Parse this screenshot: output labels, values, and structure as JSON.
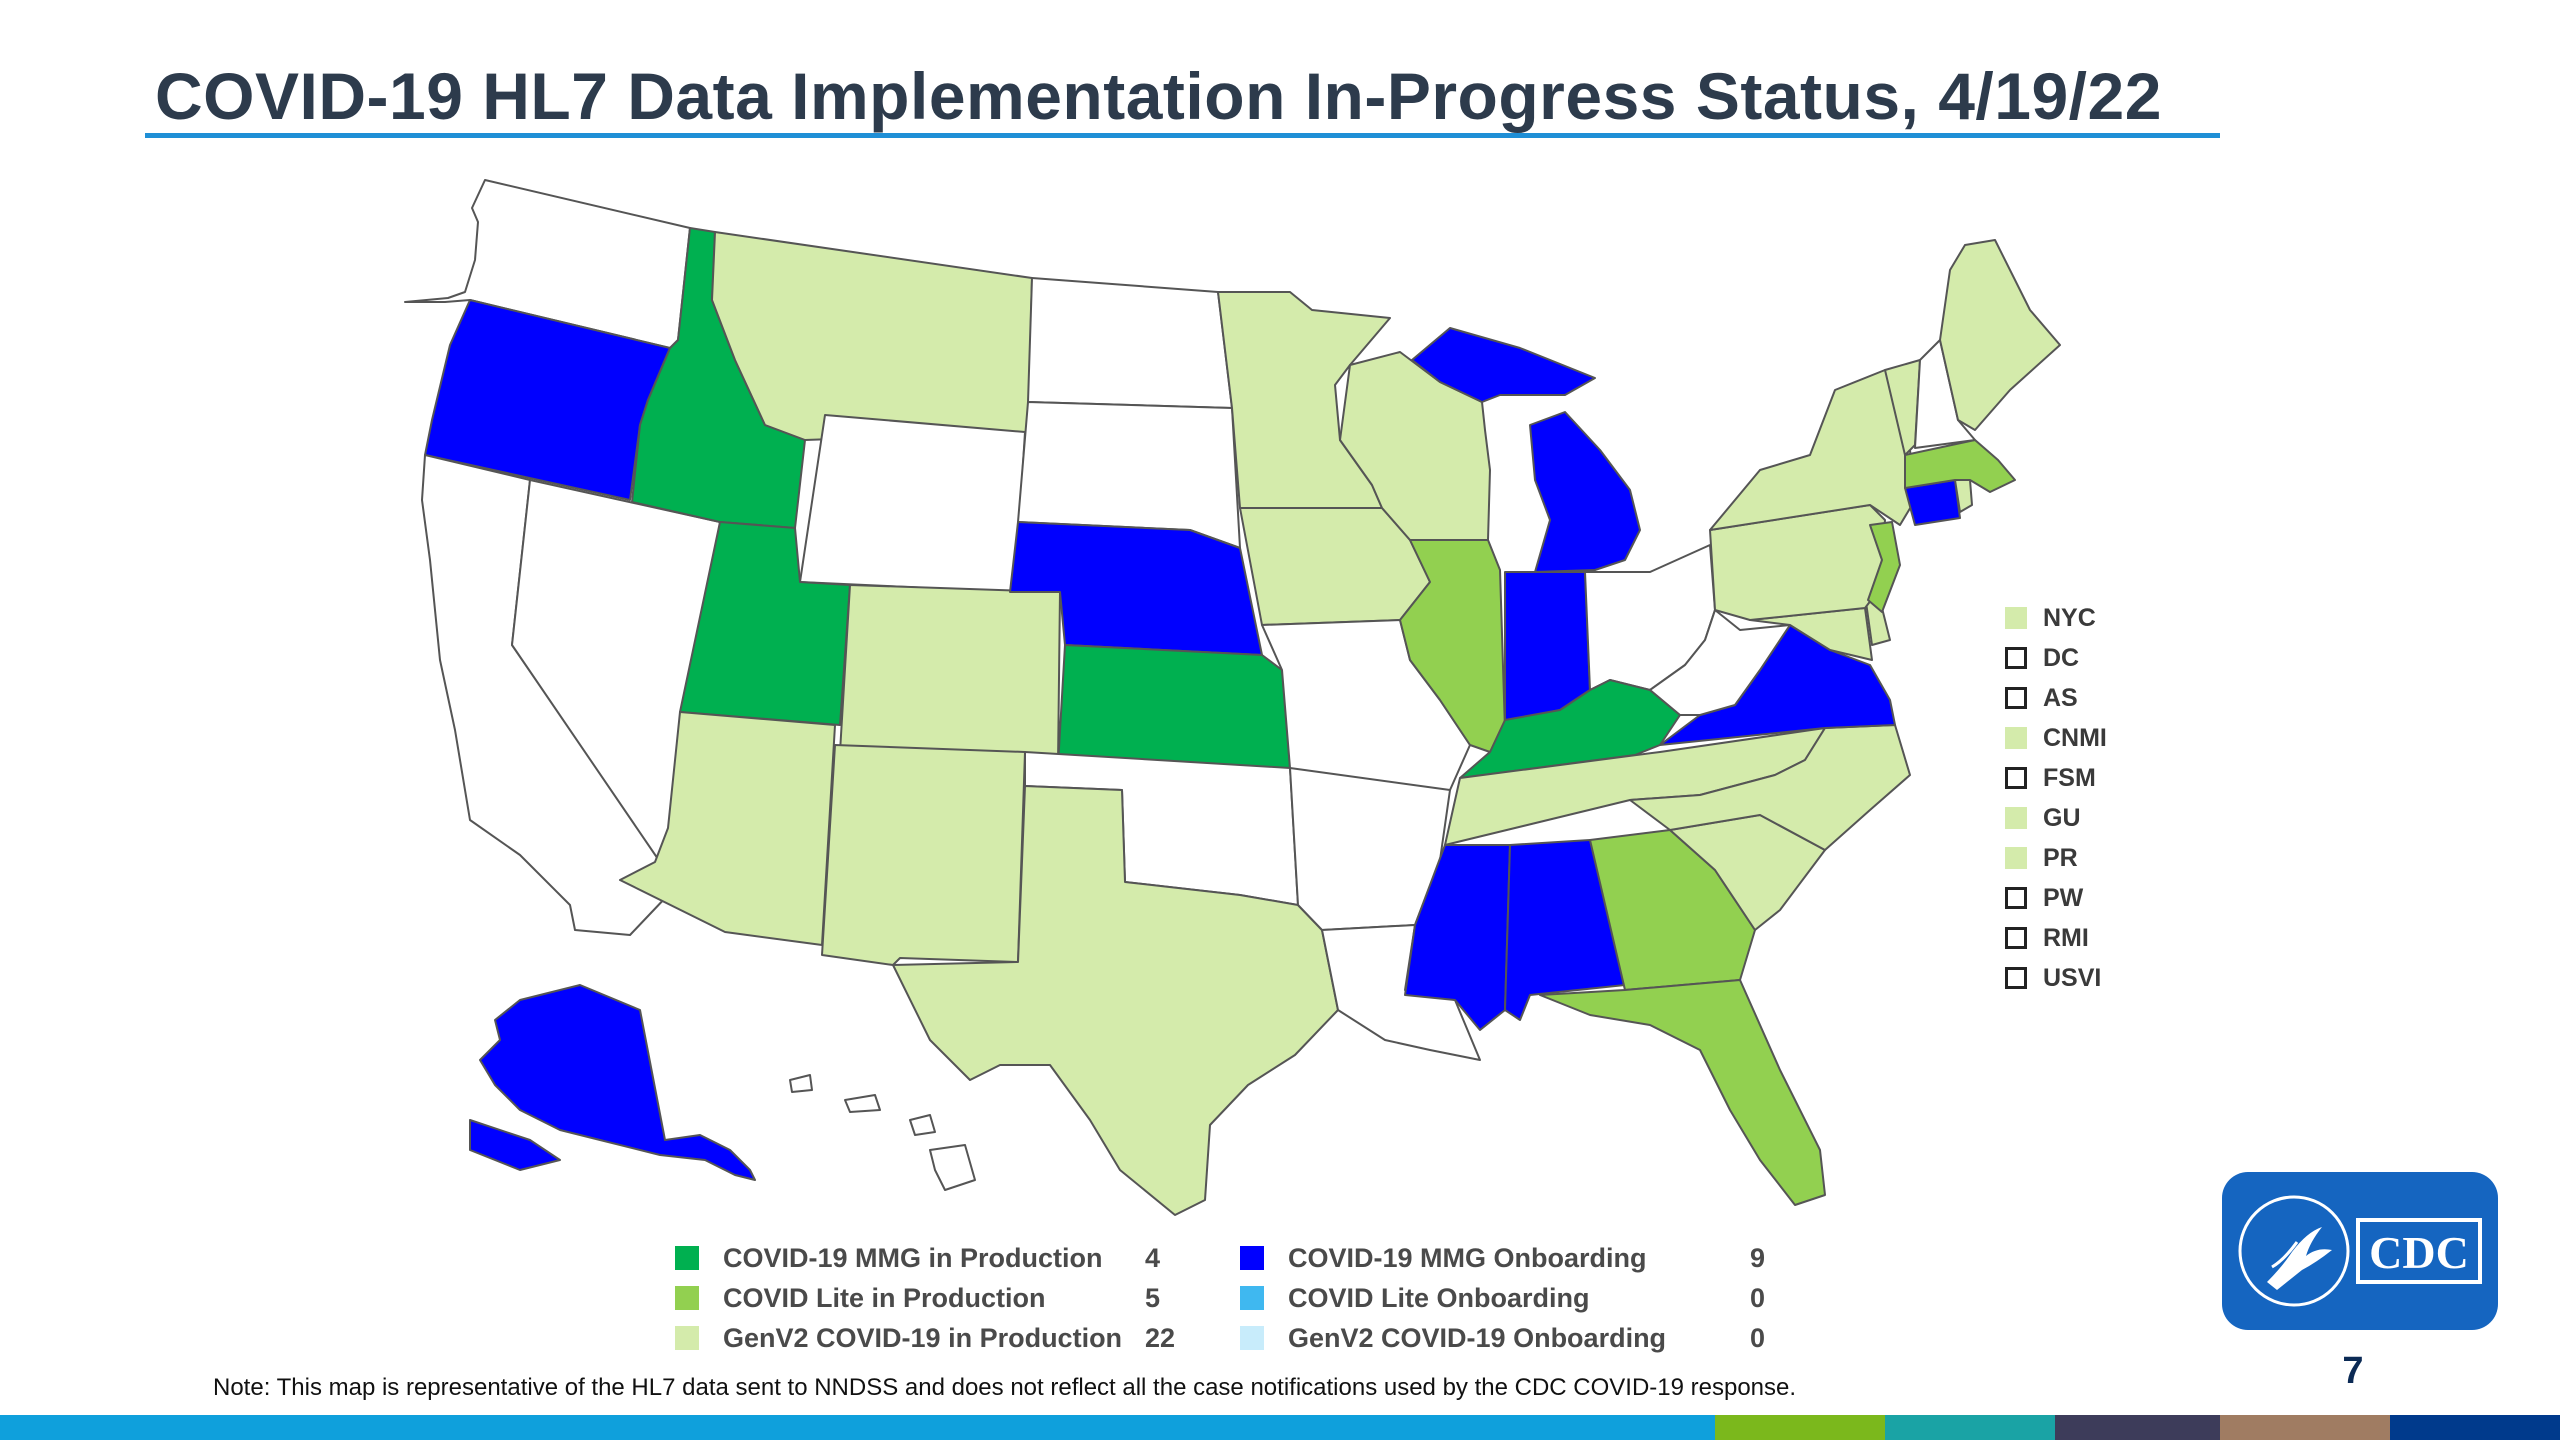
{
  "title": "COVID-19 HL7 Data Implementation In-Progress Status, 4/19/22",
  "colors": {
    "mmg_production": "#00b050",
    "lite_production": "#92d050",
    "genv2_production": "#d4ebab",
    "mmg_onboarding": "#0000ff",
    "lite_onboarding": "#3fb8f0",
    "genv2_onboarding": "#c8ecfb",
    "not_started": "#ffffff",
    "title_rule": "#1f8fd6"
  },
  "map": {
    "states": {
      "WA": "not_started",
      "OR": "mmg_onboarding",
      "CA": "not_started",
      "NV": "not_started",
      "ID": "mmg_production",
      "MT": "genv2_production",
      "WY": "not_started",
      "UT": "mmg_production",
      "AZ": "genv2_production",
      "CO": "genv2_production",
      "NM": "genv2_production",
      "ND": "not_started",
      "SD": "not_started",
      "NE": "mmg_onboarding",
      "KS": "mmg_production",
      "OK": "not_started",
      "TX": "genv2_production",
      "MN": "genv2_production",
      "IA": "genv2_production",
      "MO": "not_started",
      "AR": "not_started",
      "LA": "not_started",
      "WI": "genv2_production",
      "IL": "lite_production",
      "MI": "mmg_onboarding",
      "IN": "mmg_onboarding",
      "OH": "not_started",
      "KY": "mmg_production",
      "TN": "genv2_production",
      "MS": "mmg_onboarding",
      "AL": "mmg_onboarding",
      "GA": "lite_production",
      "FL": "lite_production",
      "SC": "genv2_production",
      "NC": "genv2_production",
      "VA": "mmg_onboarding",
      "WV": "not_started",
      "PA": "genv2_production",
      "NY": "genv2_production",
      "NJ": "lite_production",
      "DE": "genv2_production",
      "MD": "genv2_production",
      "CT": "mmg_onboarding",
      "RI": "genv2_production",
      "MA": "lite_production",
      "VT": "genv2_production",
      "NH": "not_started",
      "ME": "genv2_production",
      "AK": "mmg_onboarding",
      "HI": "not_started"
    }
  },
  "territories": [
    {
      "label": "NYC",
      "status": "genv2_production"
    },
    {
      "label": "DC",
      "status": "not_started"
    },
    {
      "label": "AS",
      "status": "not_started"
    },
    {
      "label": "CNMI",
      "status": "genv2_production"
    },
    {
      "label": "FSM",
      "status": "not_started"
    },
    {
      "label": "GU",
      "status": "genv2_production"
    },
    {
      "label": "PR",
      "status": "genv2_production"
    },
    {
      "label": "PW",
      "status": "not_started"
    },
    {
      "label": "RMI",
      "status": "not_started"
    },
    {
      "label": "USVI",
      "status": "not_started"
    }
  ],
  "legend": {
    "left": [
      {
        "label": "COVID-19 MMG in Production",
        "count": "4",
        "status": "mmg_production"
      },
      {
        "label": "COVID Lite in Production",
        "count": "5",
        "status": "lite_production"
      },
      {
        "label": "GenV2 COVID-19 in Production",
        "count": "22",
        "status": "genv2_production"
      }
    ],
    "right": [
      {
        "label": "COVID-19 MMG Onboarding",
        "count": "9",
        "status": "mmg_onboarding"
      },
      {
        "label": "COVID Lite Onboarding",
        "count": "0",
        "status": "lite_onboarding"
      },
      {
        "label": "GenV2 COVID-19 Onboarding",
        "count": "0",
        "status": "genv2_onboarding"
      }
    ]
  },
  "note": "Note: This map is representative of the HL7 data sent to NNDSS and does not reflect all the case notifications used by the CDC COVID-19 response.",
  "logo": {
    "text": "CDC"
  },
  "page_number": "7",
  "footer_colors": [
    "#0fa0dc",
    "#7bb81c",
    "#1aa3a5",
    "#3d3c5a",
    "#a07c62",
    "#003a8c"
  ]
}
